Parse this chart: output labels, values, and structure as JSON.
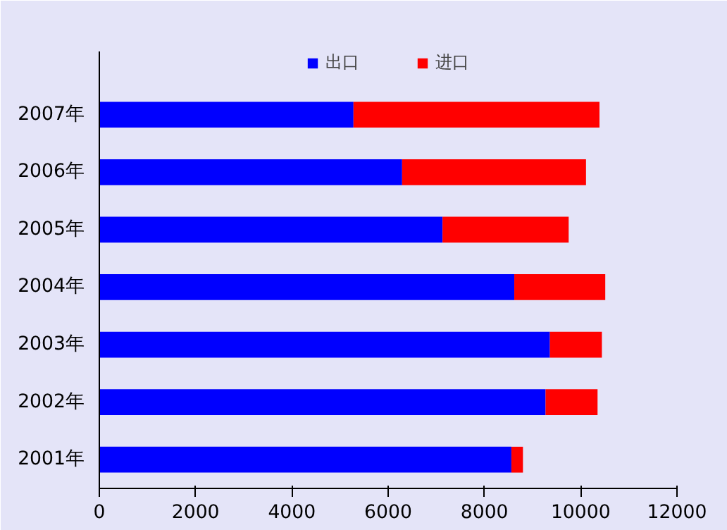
{
  "chart_data": {
    "type": "bar",
    "orientation": "horizontal",
    "stacked": true,
    "categories": [
      "2007年",
      "2006年",
      "2005年",
      "2004年",
      "2003年",
      "2002年",
      "2001年"
    ],
    "series": [
      {
        "name": "出口",
        "color": "#0000ff",
        "values": [
          5280,
          6290,
          7130,
          8620,
          9360,
          9270,
          8560
        ]
      },
      {
        "name": "进口",
        "color": "#ff0000",
        "values": [
          5110,
          3820,
          2620,
          1890,
          1080,
          1080,
          240
        ]
      }
    ],
    "xlim": [
      0,
      12000
    ],
    "xticks": [
      0,
      2000,
      4000,
      6000,
      8000,
      10000,
      12000
    ],
    "grid": false,
    "legend": "top"
  }
}
